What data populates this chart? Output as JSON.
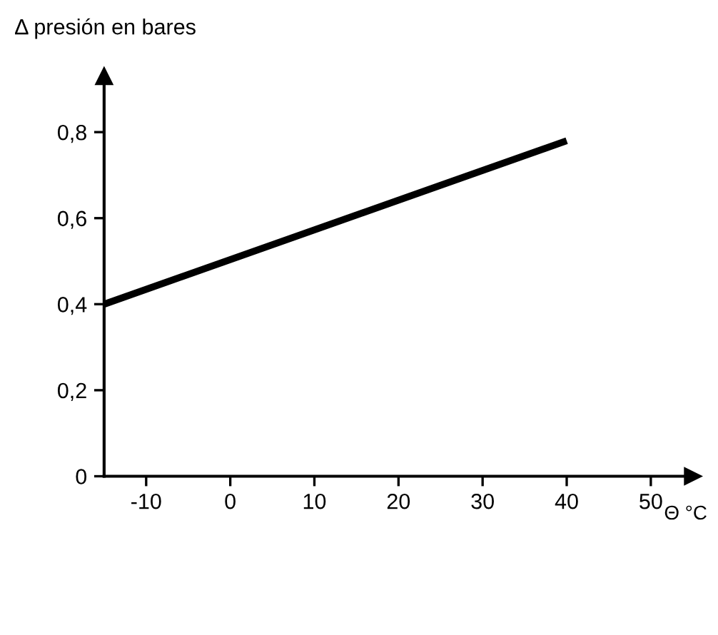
{
  "chart_data": {
    "type": "line",
    "ylabel": "Δ presión en bares",
    "xlabel": "Θ °C",
    "x": [
      -15,
      40
    ],
    "series": [
      {
        "color": "#000000",
        "values": [
          0.4,
          0.78
        ]
      }
    ],
    "xlim": [
      -15,
      55
    ],
    "ylim": [
      0,
      0.93
    ],
    "xticks": [
      -10,
      0,
      10,
      20,
      30,
      40,
      50
    ],
    "yticks": [
      {
        "value": 0,
        "label": "0"
      },
      {
        "value": 0.2,
        "label": "0,2"
      },
      {
        "value": 0.4,
        "label": "0,4"
      },
      {
        "value": 0.6,
        "label": "0,6"
      },
      {
        "value": 0.8,
        "label": "0,8"
      }
    ],
    "grid": false,
    "legend": false,
    "marker": "none",
    "line_style": "solid"
  }
}
